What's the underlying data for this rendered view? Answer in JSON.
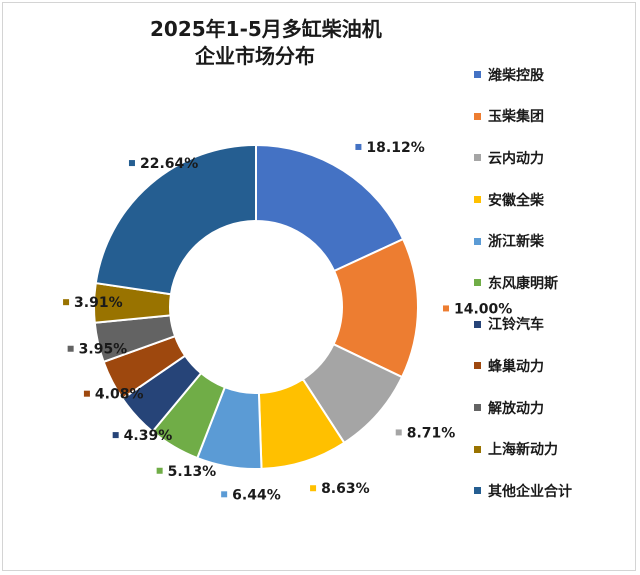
{
  "chart_data": {
    "type": "pie",
    "title_lines": [
      "2025年1-5月多缸柴油机",
      "企业市场分布"
    ],
    "legend_position": "right",
    "categories": [
      "潍柴控股",
      "玉柴集团",
      "云内动力",
      "安徽全柴",
      "浙江新柴",
      "东风康明斯",
      "江铃汽车",
      "蜂巢动力",
      "解放动力",
      "上海新动力",
      "其他企业合计"
    ],
    "values": [
      18.12,
      14.0,
      8.71,
      8.63,
      6.44,
      5.13,
      4.39,
      4.08,
      3.95,
      3.91,
      22.64
    ],
    "labels": [
      "18.12%",
      "14.00%",
      "8.71%",
      "8.63%",
      "6.44%",
      "5.13%",
      "4.39%",
      "4.08%",
      "3.95%",
      "3.91%",
      "22.64%"
    ],
    "colors": [
      "#4472C4",
      "#ED7D31",
      "#A5A5A5",
      "#FFC000",
      "#5B9BD5",
      "#70AD47",
      "#264478",
      "#9E480E",
      "#636363",
      "#997300",
      "#255E91"
    ]
  }
}
